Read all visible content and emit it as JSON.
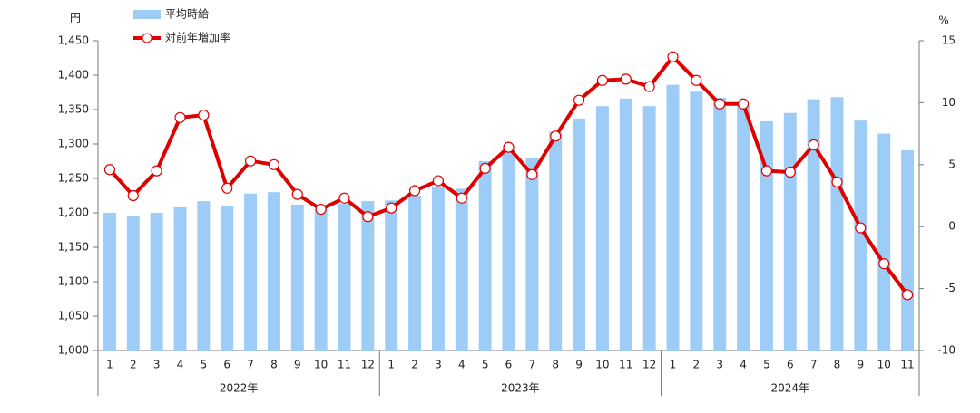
{
  "chart_data": {
    "type": "bar_line",
    "categories": [
      "1",
      "2",
      "3",
      "4",
      "5",
      "6",
      "7",
      "8",
      "9",
      "10",
      "11",
      "12",
      "1",
      "2",
      "3",
      "4",
      "5",
      "6",
      "7",
      "8",
      "9",
      "10",
      "11",
      "12",
      "1",
      "2",
      "3",
      "4",
      "5",
      "6",
      "7",
      "8",
      "9",
      "10",
      "11"
    ],
    "x_groups": [
      "2022年",
      "2023年",
      "2024年"
    ],
    "y_unit": "円",
    "y2_unit": "%",
    "series": [
      {
        "name": "平均時給",
        "color": "#9dccf7",
        "values": [
          1200,
          1195,
          1200,
          1208,
          1217,
          1210,
          1228,
          1230,
          1212,
          1205,
          1213,
          1217,
          1218,
          1225,
          1238,
          1235,
          1275,
          1291,
          1280,
          1318,
          1337,
          1355,
          1366,
          1355,
          1386,
          1376,
          1367,
          1356,
          1333,
          1345,
          1365,
          1368,
          1334,
          1315,
          1291
        ]
      },
      {
        "name": "対前年増加率",
        "color": "#e00000",
        "axis": "y2",
        "values": [
          4.6,
          2.5,
          4.5,
          8.8,
          9.0,
          3.1,
          5.3,
          5.0,
          2.6,
          1.4,
          2.3,
          0.8,
          1.5,
          2.9,
          3.7,
          2.3,
          4.7,
          6.4,
          4.2,
          7.3,
          10.2,
          11.8,
          11.9,
          11.3,
          13.7,
          11.8,
          9.9,
          9.9,
          4.5,
          4.4,
          6.6,
          3.6,
          -0.1,
          -3.0,
          -5.5
        ]
      }
    ],
    "ylim": [
      1000,
      1450
    ],
    "yticks": [
      {
        "value": 1000,
        "label": "1,000"
      },
      {
        "value": 1050,
        "label": "1,050"
      },
      {
        "value": 1100,
        "label": "1,100"
      },
      {
        "value": 1150,
        "label": "1,150"
      },
      {
        "value": 1200,
        "label": "1,200"
      },
      {
        "value": 1250,
        "label": "1,250"
      },
      {
        "value": 1300,
        "label": "1,300"
      },
      {
        "value": 1350,
        "label": "1,350"
      },
      {
        "value": 1400,
        "label": "1,400"
      },
      {
        "value": 1450,
        "label": "1,450"
      }
    ],
    "y2lim": [
      -10,
      15
    ],
    "y2ticks": [
      -10,
      -5,
      0,
      5,
      10,
      15
    ]
  }
}
